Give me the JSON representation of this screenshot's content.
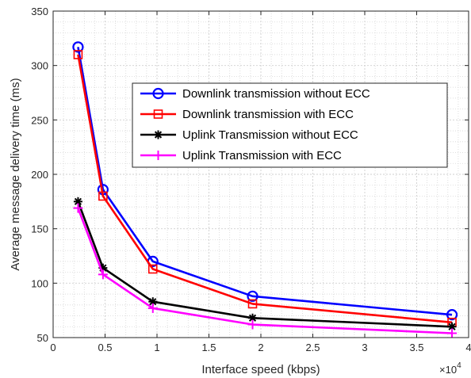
{
  "chart_data": {
    "type": "line",
    "xlabel": "Interface speed (kbps)",
    "ylabel": "Average message delivery time (ms)",
    "x_exponent_label": "×10",
    "x_exponent_power": "4",
    "x": [
      2400,
      4800,
      9600,
      19200,
      38400
    ],
    "xlim": [
      0,
      40000
    ],
    "ylim": [
      50,
      350
    ],
    "x_ticks": [
      0,
      5000,
      10000,
      15000,
      20000,
      25000,
      30000,
      35000,
      40000
    ],
    "x_tick_labels": [
      "0",
      "0.5",
      "1",
      "1.5",
      "2",
      "2.5",
      "3",
      "3.5",
      "4"
    ],
    "y_ticks": [
      50,
      100,
      150,
      200,
      250,
      300,
      350
    ],
    "y_tick_labels": [
      "50",
      "100",
      "150",
      "200",
      "250",
      "300",
      "350"
    ],
    "grid": true,
    "minor_grid": true,
    "legend_position": "top-right",
    "series": [
      {
        "name": "Downlink transmission without ECC",
        "color": "#0000ff",
        "marker": "circle",
        "values": [
          317,
          186,
          120,
          88,
          71
        ]
      },
      {
        "name": "Downlink transmission with ECC",
        "color": "#ff0000",
        "marker": "square",
        "values": [
          310,
          180,
          113,
          81,
          64
        ]
      },
      {
        "name": "Uplink Transmission without ECC",
        "color": "#000000",
        "marker": "asterisk",
        "values": [
          175,
          114,
          83,
          68,
          60
        ]
      },
      {
        "name": "Uplink Transmission with ECC",
        "color": "#ff00ff",
        "marker": "plus",
        "values": [
          169,
          108,
          77,
          62,
          54
        ]
      }
    ]
  }
}
